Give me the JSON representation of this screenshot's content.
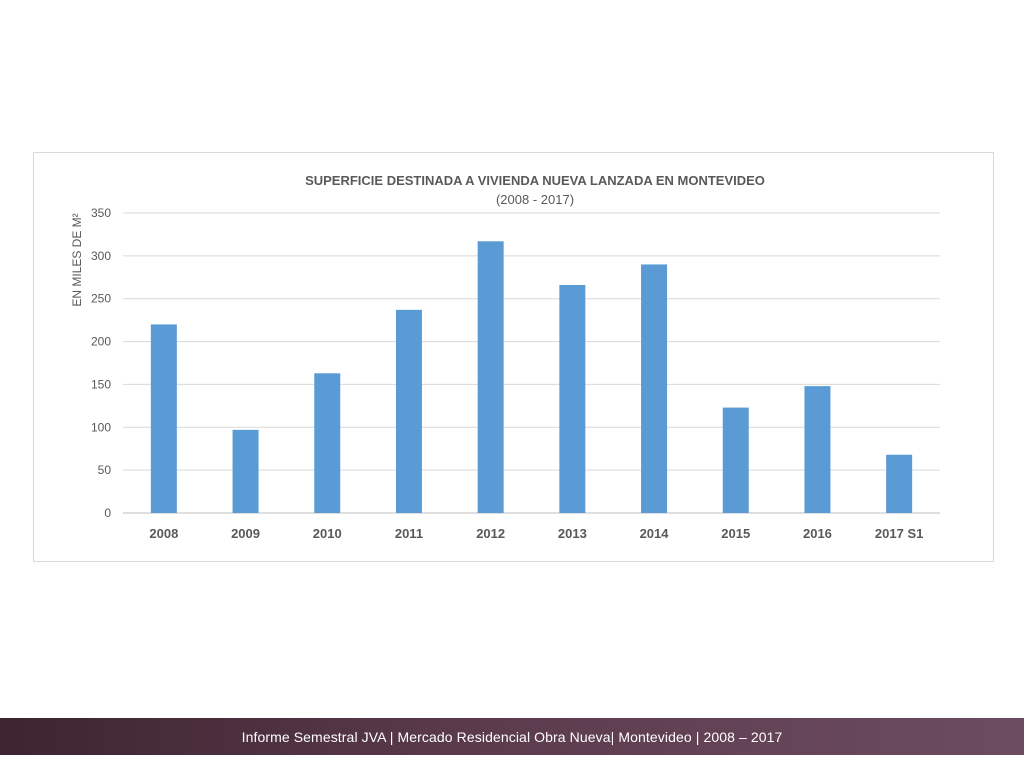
{
  "chart_data": {
    "type": "bar",
    "title": "SUPERFICIE DESTINADA A VIVIENDA NUEVA LANZADA EN MONTEVIDEO",
    "subtitle": "(2008 - 2017)",
    "xlabel": "",
    "ylabel": "EN MILES DE M²",
    "categories": [
      "2008",
      "2009",
      "2010",
      "2011",
      "2012",
      "2013",
      "2014",
      "2015",
      "2016",
      "2017 S1"
    ],
    "values": [
      220,
      97,
      163,
      237,
      317,
      266,
      290,
      123,
      148,
      68
    ],
    "ylim": [
      0,
      350
    ],
    "yticks": [
      0,
      50,
      100,
      150,
      200,
      250,
      300,
      350
    ],
    "grid": true,
    "bar_color": "#5b9bd5"
  },
  "footer": {
    "text": "Informe Semestral JVA | Mercado Residencial Obra Nueva| Montevideo | 2008 – 2017"
  }
}
